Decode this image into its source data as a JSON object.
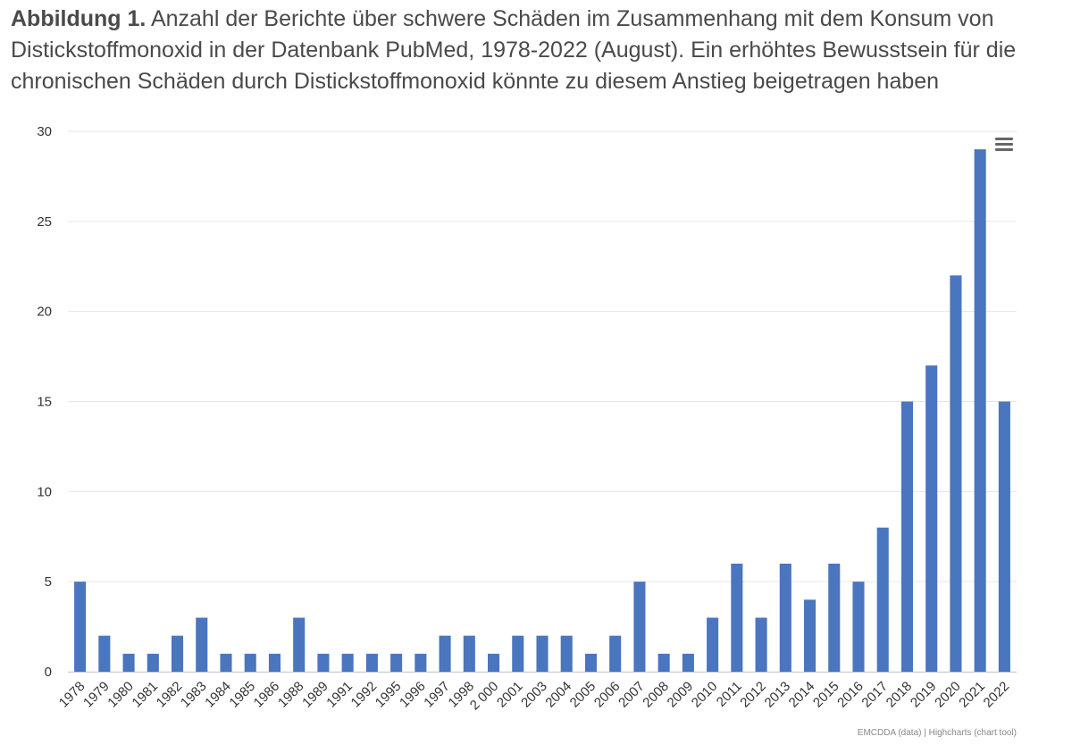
{
  "title": {
    "label": "Abbildung 1.",
    "text": "Anzahl der Berichte über schwere Schäden im Zusammenhang mit dem Konsum von Distickstoffmonoxid in der Datenbank PubMed, 1978-2022 (August). Ein erhöhtes Bewusstsein für die chronischen Schäden durch Distickstoffmonoxid könnte zu diesem Anstieg beigetragen haben"
  },
  "credits": "EMCDDA (data) | Highcharts (chart tool)",
  "menu_icon": "hamburger-menu-icon",
  "colors": {
    "bar": "#4a75bf",
    "grid": "#e6e6e6",
    "axis_text": "#333333"
  },
  "chart_data": {
    "type": "bar",
    "categories": [
      "1978",
      "1979",
      "1980",
      "1981",
      "1982",
      "1983",
      "1984",
      "1985",
      "1986",
      "1988",
      "1989",
      "1991",
      "1992",
      "1995",
      "1996",
      "1997",
      "1998",
      "2 000",
      "2001",
      "2003",
      "2004",
      "2005",
      "2006",
      "2007",
      "2008",
      "2009",
      "2010",
      "2011",
      "2012",
      "2013",
      "2014",
      "2015",
      "2016",
      "2017",
      "2018",
      "2019",
      "2020",
      "2021",
      "2022"
    ],
    "values": [
      5,
      2,
      1,
      1,
      2,
      3,
      1,
      1,
      1,
      3,
      1,
      1,
      1,
      1,
      1,
      2,
      2,
      1,
      2,
      2,
      2,
      1,
      2,
      5,
      1,
      1,
      3,
      6,
      3,
      6,
      4,
      6,
      5,
      8,
      15,
      17,
      22,
      29,
      15
    ],
    "ylim": [
      0,
      30
    ],
    "yticks": [
      0,
      5,
      10,
      15,
      20,
      25,
      30
    ],
    "grid": true,
    "legend": false
  }
}
